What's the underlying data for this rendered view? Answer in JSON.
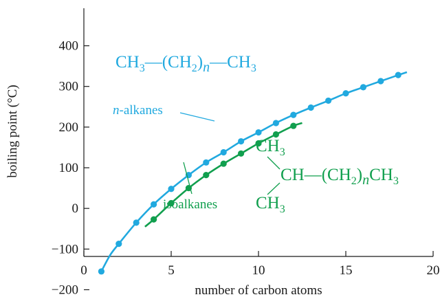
{
  "chart_data": {
    "type": "scatter",
    "title": "",
    "xlabel": "number of carbon atoms",
    "ylabel": "boiling point (°C)",
    "xlim": [
      0,
      20
    ],
    "ylim": [
      -250,
      450
    ],
    "xticks": [
      0,
      5,
      10,
      15,
      20
    ],
    "yticks": [
      -200,
      -100,
      0,
      100,
      200,
      300,
      400
    ],
    "xtick_labels": [
      "0",
      "5",
      "10",
      "15",
      "20"
    ],
    "ytick_labels": [
      "−200",
      "−100",
      "0",
      "100",
      "200",
      "300",
      "400"
    ],
    "grid": false,
    "series": [
      {
        "name": "n-alkanes",
        "color": "#21a9df",
        "x": [
          1,
          2,
          3,
          4,
          5,
          6,
          7,
          8,
          9,
          10,
          11,
          12,
          13,
          14,
          15,
          16,
          17,
          18
        ],
        "y": [
          -155,
          -87,
          -35,
          10,
          48,
          82,
          113,
          138,
          165,
          187,
          210,
          230,
          248,
          265,
          283,
          298,
          313,
          328
        ],
        "curve_x": [
          1,
          1.5,
          2,
          3,
          4,
          5,
          6,
          7,
          8,
          9,
          10,
          11,
          12,
          13,
          14,
          15,
          16,
          17,
          18,
          18.5
        ],
        "curve_y": [
          -155,
          -115,
          -87,
          -35,
          10,
          48,
          82,
          113,
          138,
          165,
          187,
          210,
          230,
          248,
          265,
          283,
          298,
          313,
          328,
          335
        ]
      },
      {
        "name": "isoalkanes",
        "color": "#119f4e",
        "x": [
          4,
          5,
          6,
          7,
          8,
          9,
          10,
          11,
          12
        ],
        "y": [
          -27,
          13,
          50,
          82,
          110,
          135,
          160,
          182,
          203
        ],
        "curve_x": [
          3.5,
          4,
          5,
          6,
          7,
          8,
          9,
          10,
          11,
          12,
          12.5
        ],
        "curve_y": [
          -45,
          -27,
          13,
          50,
          82,
          110,
          135,
          160,
          182,
          203,
          210
        ]
      }
    ],
    "annotations": {
      "n_alkanes": {
        "label": "-alkanes",
        "label_prefix": "n"
      },
      "isoalkanes": {
        "label": "isoalkanes"
      },
      "n_formula": {
        "ch3_left": "CH",
        "ch3_sub": "3",
        "dash": "—",
        "ch2_open": "(CH",
        "ch2_sub": "2",
        "ch2_close": ")",
        "n": "n",
        "ch3_right": "CH",
        "ch3_right_sub": "3"
      },
      "iso_formula": {
        "top": "CH",
        "top_sub": "3",
        "mid": "CH",
        "dash": "—",
        "ch2_open": "(CH",
        "ch2_sub": "2",
        "ch2_close": ")",
        "n": "n",
        "tail": "CH",
        "tail_sub": "3",
        "bottom": "CH",
        "bottom_sub": "3"
      }
    }
  }
}
